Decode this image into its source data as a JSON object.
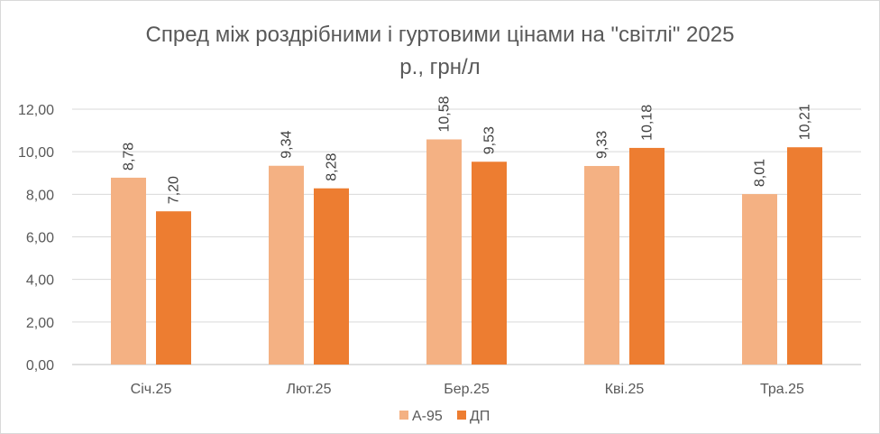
{
  "chart_data": {
    "type": "bar",
    "title_line1": "Спред між роздрібними і гуртовими цінами на \"світлі\" 2025",
    "title_line2": "р., грн/л",
    "categories": [
      "Січ.25",
      "Лют.25",
      "Бер.25",
      "Кві.25",
      "Тра.25"
    ],
    "series": [
      {
        "name": "А-95",
        "color": "#F4B183",
        "values": [
          8.78,
          9.34,
          10.58,
          9.33,
          8.01
        ],
        "labels": [
          "8,78",
          "9,34",
          "10,58",
          "9,33",
          "8,01"
        ]
      },
      {
        "name": "ДП",
        "color": "#ED7D31",
        "values": [
          7.2,
          8.28,
          9.53,
          10.18,
          10.21
        ],
        "labels": [
          "7,20",
          "8,28",
          "9,53",
          "10,18",
          "10,21"
        ]
      }
    ],
    "ylim": [
      0,
      12
    ],
    "yticks": [
      0,
      2,
      4,
      6,
      8,
      10,
      12
    ],
    "ytick_labels": [
      "0,00",
      "2,00",
      "4,00",
      "6,00",
      "8,00",
      "10,00",
      "12,00"
    ],
    "grid": true,
    "legend_position": "bottom"
  }
}
